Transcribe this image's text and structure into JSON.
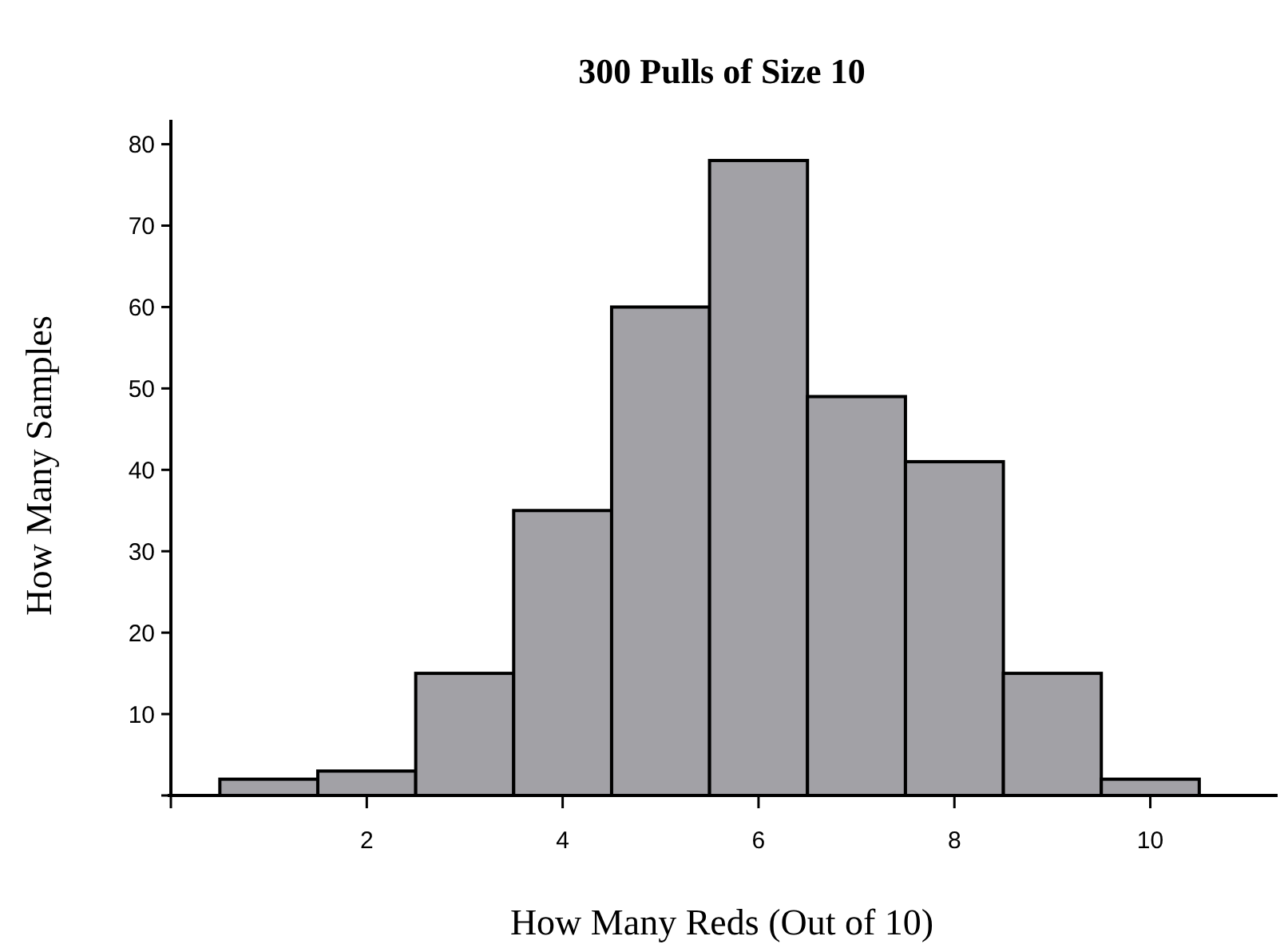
{
  "chart_data": {
    "type": "histogram",
    "title": "300 Pulls of Size 10",
    "xlabel": "How Many Reds (Out of 10)",
    "ylabel": "How Many Samples",
    "bins": [
      0.5,
      1.5,
      2.5,
      3.5,
      4.5,
      5.5,
      6.5,
      7.5,
      8.5,
      9.5,
      10.5
    ],
    "values": [
      2,
      3,
      15,
      35,
      60,
      78,
      49,
      41,
      15,
      2
    ],
    "color": "#a2a1a6",
    "xlim": [
      0,
      11.3
    ],
    "xticks": [
      {
        "value": 0,
        "label": null
      },
      2,
      4,
      6,
      8,
      10
    ],
    "ylim": [
      0,
      83
    ],
    "yticks": [
      {
        "value": 0,
        "label": null
      },
      10,
      20,
      30,
      40,
      50,
      60,
      70,
      80
    ],
    "grid": false
  }
}
